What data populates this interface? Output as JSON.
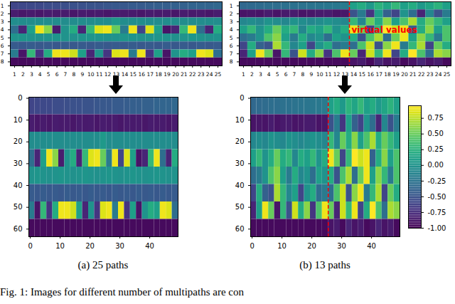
{
  "caption": "Fig. 1: Images for different number of multipaths are con",
  "chart_data": [
    {
      "type": "heatmap",
      "x_edges": [
        0.5,
        1.5,
        2.5,
        3.5,
        4.5,
        5.5,
        6.5,
        7.5,
        8.5,
        9.5,
        10.5,
        11.5,
        12.5,
        13.5,
        14.5,
        15.5,
        16.5,
        17.5,
        18.5,
        19.5,
        20.5,
        21.5,
        22.5,
        23.5,
        24.5,
        25.5
      ],
      "y_edges": [
        0.5,
        1.5,
        2.5,
        3.5,
        4.5,
        5.5,
        6.5,
        7.5,
        8.5
      ],
      "xlim": [
        0.5,
        25.5
      ],
      "ylim": [
        0.5,
        8.5
      ],
      "xticks": [
        1,
        2,
        3,
        4,
        5,
        6,
        7,
        8,
        9,
        10,
        11,
        12,
        13,
        14,
        15,
        16,
        17,
        18,
        19,
        20,
        21,
        22,
        23,
        24,
        25
      ],
      "yticks": [
        1,
        2,
        3,
        4,
        5,
        6,
        7,
        8
      ],
      "cells": [
        [
          -0.6,
          -0.58,
          -0.57,
          -0.57,
          -0.55,
          -0.55,
          -0.53,
          -0.52,
          -0.52,
          -0.5,
          -0.5,
          -0.48,
          -0.47,
          -0.47,
          -0.45,
          -0.45,
          -0.43,
          -0.42,
          -0.42,
          -0.4,
          -0.4,
          -0.38,
          -0.37,
          -0.37,
          -0.35
        ],
        [
          -0.85,
          -0.88,
          -0.86,
          -0.88,
          -0.85,
          -0.87,
          -0.86,
          -0.88,
          -0.85,
          -0.87,
          -0.86,
          -0.88,
          -0.85,
          -0.87,
          -0.86,
          -0.88,
          -0.85,
          -0.87,
          -0.86,
          -0.88,
          -0.85,
          -0.87,
          -0.86,
          -0.88,
          -0.85
        ],
        [
          -0.05,
          -0.05,
          -0.05,
          -0.05,
          -0.05,
          -0.05,
          -0.05,
          -0.05,
          -0.05,
          -0.05,
          -0.05,
          -0.05,
          0.05,
          -0.05,
          -0.05,
          -0.05,
          -0.05,
          -0.05,
          -0.05,
          -0.05,
          -0.05,
          -0.05,
          -0.05,
          -0.05,
          -0.05
        ],
        [
          -0.3,
          -0.8,
          0.1,
          0.9,
          0.6,
          -0.85,
          0,
          0.2,
          -0.8,
          0.3,
          0.85,
          0.9,
          0.5,
          -0.2,
          0.9,
          -0.6,
          0.85,
          0.1,
          -0.9,
          -0.8,
          0.3,
          0.9,
          -0.3,
          -0.8,
          0.2
        ],
        [
          0,
          0.02,
          0,
          -0.02,
          0,
          0.02,
          0,
          -0.02,
          0,
          0.02,
          0,
          -0.02,
          0,
          0.02,
          0,
          -0.02,
          0,
          0.02,
          0,
          -0.02,
          0,
          0.02,
          0,
          -0.02,
          0
        ],
        [
          -0.45,
          -0.47,
          -0.44,
          -0.46,
          -0.45,
          -0.47,
          -0.44,
          -0.46,
          -0.45,
          -0.47,
          -0.44,
          -0.46,
          -0.45,
          -0.47,
          -0.44,
          -0.46,
          -0.45,
          -0.47,
          -0.44,
          -0.46,
          -0.45,
          -0.47,
          -0.44,
          -0.46,
          -0.45
        ],
        [
          -0.2,
          -0.9,
          0.3,
          -0.7,
          0.2,
          0.9,
          0.9,
          0.8,
          0.1,
          -0.8,
          0,
          -0.7,
          0.85,
          0.9,
          -0.2,
          0.9,
          -0.7,
          0.1,
          -0.9,
          0,
          0.2,
          0.1,
          0.9,
          0.85,
          -0.3
        ],
        [
          -0.95,
          -0.95,
          -0.95,
          -0.95,
          -0.95,
          -0.95,
          -0.95,
          -0.95,
          -0.95,
          -0.95,
          -0.95,
          -0.95,
          -0.95,
          -0.95,
          -0.95,
          -0.95,
          -0.95,
          -0.95,
          -0.95,
          -0.95,
          -0.95,
          -0.95,
          -0.95,
          -0.95,
          -0.95
        ]
      ]
    },
    {
      "type": "heatmap",
      "x_edges": [
        0.5,
        1.5,
        2.5,
        3.5,
        4.5,
        5.5,
        6.5,
        7.5,
        8.5,
        9.5,
        10.5,
        11.5,
        12.5,
        13.5,
        14.5,
        15.5,
        16.5,
        17.5,
        18.5,
        19.5,
        20.5,
        21.5,
        22.5,
        23.5,
        24.5,
        25.5
      ],
      "y_edges": [
        0.5,
        1.5,
        2.5,
        3.5,
        4.5,
        5.5,
        6.5,
        7.5,
        8.5
      ],
      "xlim": [
        0.5,
        25.5
      ],
      "ylim": [
        0.5,
        8.5
      ],
      "xticks": [
        1,
        2,
        3,
        4,
        5,
        6,
        7,
        8,
        9,
        10,
        11,
        12,
        13,
        14,
        15,
        16,
        17,
        18,
        19,
        20,
        21,
        22,
        23,
        24,
        25
      ],
      "yticks": [
        1,
        2,
        3,
        4,
        5,
        6,
        7,
        8
      ],
      "divider": {
        "x": 13.5,
        "color": "#ff0000",
        "line_style": "dashed"
      },
      "annotation": {
        "text": "virtual values",
        "x": 13.5,
        "y": 4,
        "color": "#ff0000"
      },
      "cells": [
        [
          -0.35,
          -0.33,
          -0.32,
          -0.3,
          -0.3,
          -0.28,
          -0.27,
          -0.26,
          -0.25,
          -0.24,
          -0.23,
          -0.22,
          -0.2,
          0.1,
          0.2,
          0.05,
          0.25,
          0.15,
          0.3,
          0.1,
          0.2,
          0.05,
          0.15,
          0.25,
          0.1
        ],
        [
          -0.9,
          -0.88,
          -0.9,
          -0.85,
          -0.9,
          -0.87,
          -0.85,
          -0.9,
          -0.88,
          -0.86,
          -0.85,
          -0.9,
          -0.88,
          -0.5,
          -0.2,
          -0.7,
          0.1,
          -0.4,
          -0.6,
          0,
          -0.3,
          -0.8,
          -0.1,
          -0.5,
          -0.2
        ],
        [
          -0.1,
          -0.05,
          -0.1,
          0,
          -0.05,
          -0.1,
          0,
          -0.05,
          -0.1,
          -0.05,
          0,
          -0.05,
          -0.1,
          0.3,
          -0.1,
          0.5,
          0.2,
          0.6,
          0.1,
          0.4,
          0.7,
          0.2,
          0.5,
          0.3,
          0.1
        ],
        [
          0.1,
          0.3,
          0,
          0.2,
          0.5,
          0.2,
          0.3,
          -0.1,
          0.2,
          0.1,
          0.3,
          0,
          0.2,
          0.9,
          0.5,
          -0.6,
          0.3,
          0.95,
          0.8,
          0.9,
          -0.4,
          0.2,
          0.6,
          0.1,
          0.4
        ],
        [
          -0.3,
          -0.2,
          0,
          0.4,
          0.6,
          0.1,
          -0.2,
          0.2,
          -0.1,
          0,
          -0.3,
          0.1,
          0,
          0.2,
          -0.5,
          0.4,
          0.7,
          -0.3,
          0.5,
          0.9,
          0.1,
          0.6,
          0.3,
          -0.2,
          0.4
        ],
        [
          -0.6,
          0.2,
          -0.4,
          -0.5,
          0.7,
          0.3,
          -0.1,
          0.1,
          -0.6,
          0,
          0.2,
          -0.3,
          -0.2,
          -0.3,
          0.4,
          0.8,
          -0.5,
          0.6,
          0.9,
          -0.2,
          0.3,
          0.7,
          -0.6,
          0.5,
          0.2
        ],
        [
          -0.8,
          0.1,
          0.9,
          0.5,
          -0.9,
          0.3,
          -0.5,
          0.8,
          0.2,
          0.6,
          -0.7,
          0.4,
          0.9,
          0.5,
          -0.8,
          0.8,
          0.3,
          0.9,
          -0.6,
          0.2,
          0.95,
          0.4,
          -0.3,
          0.7,
          0.6
        ],
        [
          -0.95,
          -0.95,
          -0.95,
          -0.95,
          -0.95,
          -0.95,
          -0.95,
          -0.95,
          -0.95,
          -0.95,
          -0.95,
          -0.95,
          -0.95,
          -0.9,
          -0.85,
          -0.95,
          -0.8,
          -0.9,
          -0.85,
          -0.95,
          -0.9,
          -0.8,
          -0.9,
          -0.85,
          -0.95
        ]
      ]
    },
    {
      "type": "heatmap",
      "title": "(a) 25 paths",
      "x_edges": [
        -0.5,
        1.5,
        3.5,
        5.5,
        7.5,
        9.5,
        11.5,
        13.5,
        15.5,
        17.5,
        19.5,
        21.5,
        23.5,
        25.5,
        27.5,
        29.5,
        31.5,
        33.5,
        35.5,
        37.5,
        39.5,
        41.5,
        43.5,
        45.5,
        47.5,
        49.5
      ],
      "y_edges": [
        -0.5,
        7.5,
        15.5,
        23.5,
        31.5,
        39.5,
        47.5,
        55.5,
        63.5
      ],
      "xlim": [
        -0.5,
        49.5
      ],
      "ylim": [
        -0.5,
        63.5
      ],
      "xticks": [
        0,
        10,
        20,
        30,
        40
      ],
      "yticks": [
        0,
        10,
        20,
        30,
        40,
        50,
        60
      ],
      "cells": [
        [
          -0.6,
          -0.58,
          -0.57,
          -0.57,
          -0.55,
          -0.55,
          -0.53,
          -0.52,
          -0.52,
          -0.5,
          -0.5,
          -0.48,
          -0.47,
          -0.47,
          -0.45,
          -0.45,
          -0.43,
          -0.42,
          -0.42,
          -0.4,
          -0.4,
          -0.38,
          -0.37,
          -0.37,
          -0.35
        ],
        [
          -0.85,
          -0.88,
          -0.86,
          -0.88,
          -0.85,
          -0.87,
          -0.86,
          -0.88,
          -0.85,
          -0.87,
          -0.86,
          -0.88,
          -0.85,
          -0.87,
          -0.86,
          -0.88,
          -0.85,
          -0.87,
          -0.86,
          -0.88,
          -0.85,
          -0.87,
          -0.86,
          -0.88,
          -0.85
        ],
        [
          -0.05,
          -0.05,
          -0.05,
          -0.05,
          -0.05,
          -0.05,
          -0.05,
          -0.05,
          -0.05,
          -0.05,
          -0.05,
          -0.05,
          0.05,
          -0.05,
          -0.05,
          -0.05,
          -0.05,
          -0.05,
          -0.05,
          -0.05,
          -0.05,
          -0.05,
          -0.05,
          -0.05,
          -0.05
        ],
        [
          -0.3,
          -0.8,
          0.1,
          0.9,
          0.6,
          -0.85,
          0,
          0.2,
          -0.8,
          0.3,
          0.85,
          0.9,
          0.5,
          -0.2,
          0.9,
          -0.6,
          0.85,
          0.1,
          -0.9,
          -0.8,
          0.3,
          0.9,
          -0.3,
          -0.8,
          0.2
        ],
        [
          0,
          0.02,
          0,
          -0.02,
          0,
          0.02,
          0,
          -0.02,
          0,
          0.02,
          0,
          -0.02,
          0,
          0.02,
          0,
          -0.02,
          0,
          0.02,
          0,
          -0.02,
          0,
          0.02,
          0,
          -0.02,
          0
        ],
        [
          -0.45,
          -0.47,
          -0.44,
          -0.46,
          -0.45,
          -0.47,
          -0.44,
          -0.46,
          -0.45,
          -0.47,
          -0.44,
          -0.46,
          -0.45,
          -0.47,
          -0.44,
          -0.46,
          -0.45,
          -0.47,
          -0.44,
          -0.46,
          -0.45,
          -0.47,
          -0.44,
          -0.46,
          -0.45
        ],
        [
          -0.2,
          -0.9,
          0.3,
          -0.7,
          0.2,
          0.9,
          0.9,
          0.8,
          0.1,
          -0.8,
          0,
          -0.7,
          0.85,
          0.9,
          -0.2,
          0.9,
          -0.7,
          0.1,
          -0.9,
          0,
          0.2,
          0.1,
          0.9,
          0.85,
          -0.3
        ],
        [
          -0.95,
          -0.95,
          -0.95,
          -0.95,
          -0.95,
          -0.95,
          -0.95,
          -0.95,
          -0.95,
          -0.95,
          -0.95,
          -0.95,
          -0.95,
          -0.95,
          -0.95,
          -0.95,
          -0.95,
          -0.95,
          -0.95,
          -0.95,
          -0.95,
          -0.95,
          -0.95,
          -0.95,
          -0.95
        ]
      ]
    },
    {
      "type": "heatmap",
      "title": "(b) 13 paths",
      "x_edges": [
        -0.5,
        1.5,
        3.5,
        5.5,
        7.5,
        9.5,
        11.5,
        13.5,
        15.5,
        17.5,
        19.5,
        21.5,
        23.5,
        25.5,
        27.5,
        29.5,
        31.5,
        33.5,
        35.5,
        37.5,
        39.5,
        41.5,
        43.5,
        45.5,
        47.5,
        49.5
      ],
      "y_edges": [
        -0.5,
        7.5,
        15.5,
        23.5,
        31.5,
        39.5,
        47.5,
        55.5,
        63.5
      ],
      "xlim": [
        -0.5,
        49.5
      ],
      "ylim": [
        -0.5,
        63.5
      ],
      "xticks": [
        0,
        10,
        20,
        30,
        40
      ],
      "yticks": [
        0,
        10,
        20,
        30,
        40,
        50,
        60
      ],
      "divider": {
        "x": 25.5,
        "color": "#ff0000",
        "line_style": "dashed"
      },
      "colorbar": {
        "range": [
          -1,
          0.95
        ],
        "ticks": [
          {
            "value": -1,
            "label": "-1.00"
          },
          {
            "value": -0.75,
            "label": "-0.75"
          },
          {
            "value": -0.5,
            "label": "-0.50"
          },
          {
            "value": -0.25,
            "label": "-0.25"
          },
          {
            "value": 0,
            "label": "0.00"
          },
          {
            "value": 0.25,
            "label": "0.25"
          },
          {
            "value": 0.5,
            "label": "0.50"
          },
          {
            "value": 0.75,
            "label": "0.75"
          }
        ]
      },
      "cells": [
        [
          -0.35,
          -0.33,
          -0.32,
          -0.3,
          -0.3,
          -0.28,
          -0.27,
          -0.26,
          -0.25,
          -0.24,
          -0.23,
          -0.22,
          -0.2,
          0.1,
          0.2,
          0.05,
          0.25,
          0.15,
          0.3,
          0.1,
          0.2,
          0.05,
          0.15,
          0.25,
          0.1
        ],
        [
          -0.9,
          -0.88,
          -0.9,
          -0.85,
          -0.9,
          -0.87,
          -0.85,
          -0.9,
          -0.88,
          -0.86,
          -0.85,
          -0.9,
          -0.88,
          -0.5,
          -0.2,
          -0.7,
          0.1,
          -0.4,
          -0.6,
          0,
          -0.3,
          -0.8,
          -0.1,
          -0.5,
          -0.2
        ],
        [
          -0.1,
          -0.05,
          -0.1,
          0,
          -0.05,
          -0.1,
          0,
          -0.05,
          -0.1,
          -0.05,
          0,
          -0.05,
          -0.1,
          0.3,
          -0.1,
          0.5,
          0.2,
          0.6,
          0.1,
          0.4,
          0.7,
          0.2,
          0.5,
          0.3,
          0.1
        ],
        [
          0.1,
          0.3,
          0,
          0.2,
          0.5,
          0.2,
          0.3,
          -0.1,
          0.2,
          0.1,
          0.3,
          0,
          0.2,
          0.9,
          0.5,
          -0.6,
          0.3,
          0.95,
          0.8,
          0.9,
          -0.4,
          0.2,
          0.6,
          0.1,
          0.4
        ],
        [
          -0.3,
          -0.2,
          0,
          0.4,
          0.6,
          0.1,
          -0.2,
          0.2,
          -0.1,
          0,
          -0.3,
          0.1,
          0,
          0.2,
          -0.5,
          0.4,
          0.7,
          -0.3,
          0.5,
          0.9,
          0.1,
          0.6,
          0.3,
          -0.2,
          0.4
        ],
        [
          -0.6,
          0.2,
          -0.4,
          -0.5,
          0.7,
          0.3,
          -0.1,
          0.1,
          -0.6,
          0,
          0.2,
          -0.3,
          -0.2,
          -0.3,
          0.4,
          0.8,
          -0.5,
          0.6,
          0.9,
          -0.2,
          0.3,
          0.7,
          -0.6,
          0.5,
          0.2
        ],
        [
          -0.8,
          0.1,
          0.9,
          0.5,
          -0.9,
          0.3,
          -0.5,
          0.8,
          0.2,
          0.6,
          -0.7,
          0.4,
          0.9,
          0.5,
          -0.8,
          0.8,
          0.3,
          0.9,
          -0.6,
          0.2,
          0.95,
          0.4,
          -0.3,
          0.7,
          0.6
        ],
        [
          -0.95,
          -0.95,
          -0.95,
          -0.95,
          -0.95,
          -0.95,
          -0.95,
          -0.95,
          -0.95,
          -0.95,
          -0.95,
          -0.95,
          -0.95,
          -0.9,
          -0.85,
          -0.95,
          -0.8,
          -0.9,
          -0.85,
          -0.95,
          -0.9,
          -0.8,
          -0.9,
          -0.85,
          -0.95
        ]
      ]
    }
  ]
}
